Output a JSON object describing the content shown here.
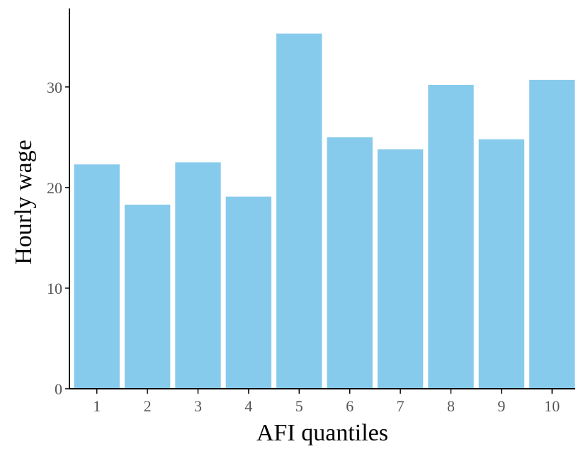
{
  "chart_data": {
    "type": "bar",
    "title": "",
    "xlabel": "AFI quantiles",
    "ylabel": "Hourly wage",
    "categories": [
      "1",
      "2",
      "3",
      "4",
      "5",
      "6",
      "7",
      "8",
      "9",
      "10"
    ],
    "values": [
      22.3,
      18.3,
      22.5,
      19.1,
      35.3,
      25.0,
      23.8,
      30.2,
      24.8,
      30.7
    ],
    "yticks": [
      0,
      10,
      20,
      30
    ],
    "ylim": [
      0,
      37.8
    ],
    "grid": false,
    "bar_color": "#87CBEC"
  }
}
